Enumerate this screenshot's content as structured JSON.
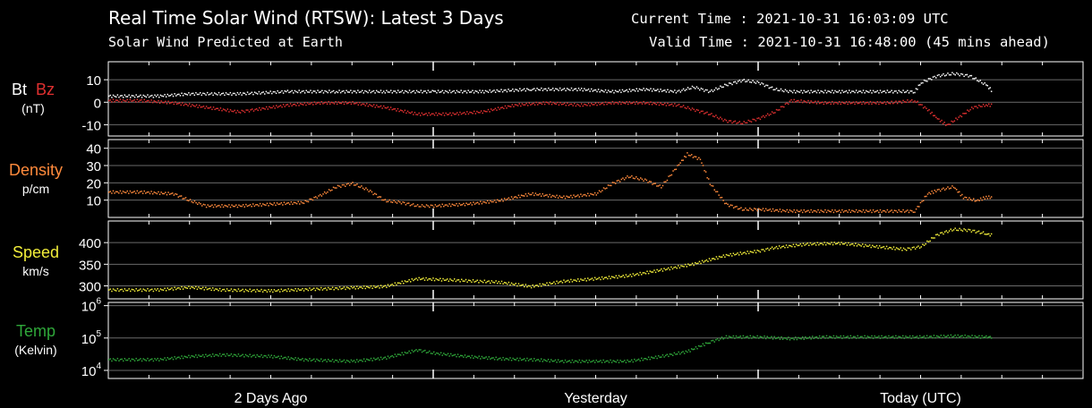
{
  "header": {
    "title": "Real Time Solar Wind (RTSW): Latest 3 Days",
    "subtitle": "Solar Wind Predicted at Earth",
    "current_time_label": "Current Time : ",
    "current_time": "2021-10-31 16:03:09 UTC",
    "valid_time_label": "Valid Time : ",
    "valid_time": "2021-10-31 16:48:00 (45 mins ahead)"
  },
  "colors": {
    "bt": "#ffffff",
    "bz": "#e03030",
    "density": "#ff8a3c",
    "speed": "#f2ee3a",
    "temp": "#2fa83a",
    "axis": "#ffffff",
    "grid": "#6a6a6a"
  },
  "panels": {
    "mag": {
      "label_bt": "Bt",
      "label_bz": "Bz",
      "unit": "(nT)"
    },
    "density": {
      "label": "Density",
      "unit": "p/cm"
    },
    "speed": {
      "label": "Speed",
      "unit": "km/s"
    },
    "temp": {
      "label": "Temp",
      "unit": "(Kelvin)"
    }
  },
  "chart_data": {
    "type": "scatter",
    "x_range_days": [
      0,
      3
    ],
    "x_tick_labels": [
      {
        "day": 0.5,
        "label": "2 Days Ago"
      },
      {
        "day": 1.5,
        "label": "Yesterday"
      },
      {
        "day": 2.5,
        "label": "Today (UTC)"
      }
    ],
    "x_divisions_days": [
      1,
      2
    ],
    "panels": [
      {
        "id": "mag",
        "ylim": [
          -15,
          18
        ],
        "yticks": [
          10,
          0,
          -10
        ],
        "ytick_labels": [
          "10",
          "0",
          "-10"
        ],
        "series": [
          {
            "name": "Bt",
            "color_key": "bt",
            "points": [
              [
                0,
                3
              ],
              [
                0.15,
                3
              ],
              [
                0.25,
                4
              ],
              [
                0.4,
                4
              ],
              [
                0.55,
                5
              ],
              [
                0.7,
                5
              ],
              [
                0.85,
                5
              ],
              [
                1.0,
                5
              ],
              [
                1.15,
                5
              ],
              [
                1.3,
                6
              ],
              [
                1.45,
                6
              ],
              [
                1.55,
                5
              ],
              [
                1.65,
                6
              ],
              [
                1.75,
                5
              ],
              [
                1.8,
                7
              ],
              [
                1.85,
                5
              ],
              [
                1.9,
                8
              ],
              [
                1.95,
                10
              ],
              [
                2.0,
                9
              ],
              [
                2.05,
                6
              ],
              [
                2.1,
                5
              ],
              [
                2.2,
                5
              ],
              [
                2.3,
                5
              ],
              [
                2.4,
                5
              ],
              [
                2.48,
                5
              ],
              [
                2.5,
                9
              ],
              [
                2.55,
                12
              ],
              [
                2.6,
                13
              ],
              [
                2.65,
                12
              ],
              [
                2.7,
                8
              ],
              [
                2.72,
                5
              ]
            ]
          },
          {
            "name": "Bz",
            "color_key": "bz",
            "points": [
              [
                0,
                1
              ],
              [
                0.1,
                1
              ],
              [
                0.2,
                0
              ],
              [
                0.3,
                -2
              ],
              [
                0.4,
                -4
              ],
              [
                0.45,
                -3
              ],
              [
                0.55,
                -1
              ],
              [
                0.65,
                0
              ],
              [
                0.75,
                0
              ],
              [
                0.85,
                -2
              ],
              [
                0.95,
                -5
              ],
              [
                1.05,
                -5
              ],
              [
                1.15,
                -4
              ],
              [
                1.25,
                -1
              ],
              [
                1.35,
                0
              ],
              [
                1.45,
                -1
              ],
              [
                1.55,
                0
              ],
              [
                1.65,
                0
              ],
              [
                1.75,
                -1
              ],
              [
                1.8,
                -3
              ],
              [
                1.85,
                -5
              ],
              [
                1.9,
                -8
              ],
              [
                1.95,
                -9
              ],
              [
                2.0,
                -7
              ],
              [
                2.05,
                -4
              ],
              [
                2.1,
                1
              ],
              [
                2.2,
                0
              ],
              [
                2.3,
                0
              ],
              [
                2.4,
                0
              ],
              [
                2.48,
                1
              ],
              [
                2.52,
                -3
              ],
              [
                2.55,
                -7
              ],
              [
                2.58,
                -10
              ],
              [
                2.62,
                -6
              ],
              [
                2.66,
                -2
              ],
              [
                2.7,
                -1
              ],
              [
                2.72,
                -1
              ]
            ]
          }
        ]
      },
      {
        "id": "density",
        "ylim": [
          0,
          45
        ],
        "yticks": [
          40,
          30,
          20,
          10
        ],
        "ytick_labels": [
          "40",
          "30",
          "20",
          "10"
        ],
        "series": [
          {
            "name": "",
            "color_key": "density",
            "points": [
              [
                0,
                15
              ],
              [
                0.1,
                15
              ],
              [
                0.2,
                14
              ],
              [
                0.25,
                10
              ],
              [
                0.3,
                7
              ],
              [
                0.4,
                7
              ],
              [
                0.5,
                8
              ],
              [
                0.6,
                9
              ],
              [
                0.65,
                13
              ],
              [
                0.7,
                18
              ],
              [
                0.75,
                20
              ],
              [
                0.8,
                16
              ],
              [
                0.85,
                10
              ],
              [
                0.9,
                9
              ],
              [
                0.95,
                7
              ],
              [
                1.0,
                7
              ],
              [
                1.1,
                8
              ],
              [
                1.2,
                10
              ],
              [
                1.3,
                14
              ],
              [
                1.4,
                12
              ],
              [
                1.5,
                14
              ],
              [
                1.55,
                20
              ],
              [
                1.6,
                24
              ],
              [
                1.65,
                22
              ],
              [
                1.7,
                18
              ],
              [
                1.75,
                30
              ],
              [
                1.78,
                37
              ],
              [
                1.82,
                34
              ],
              [
                1.85,
                20
              ],
              [
                1.9,
                8
              ],
              [
                1.95,
                5
              ],
              [
                2.0,
                5
              ],
              [
                2.1,
                4
              ],
              [
                2.2,
                4
              ],
              [
                2.3,
                4
              ],
              [
                2.4,
                4
              ],
              [
                2.48,
                4
              ],
              [
                2.52,
                14
              ],
              [
                2.55,
                16
              ],
              [
                2.6,
                18
              ],
              [
                2.63,
                12
              ],
              [
                2.67,
                10
              ],
              [
                2.7,
                12
              ],
              [
                2.72,
                12
              ]
            ]
          }
        ]
      },
      {
        "id": "speed",
        "ylim": [
          270,
          450
        ],
        "yticks": [
          400,
          350,
          300
        ],
        "ytick_labels": [
          "400",
          "350",
          "300"
        ],
        "series": [
          {
            "name": "",
            "color_key": "speed",
            "points": [
              [
                0,
                292
              ],
              [
                0.15,
                292
              ],
              [
                0.25,
                298
              ],
              [
                0.35,
                292
              ],
              [
                0.5,
                290
              ],
              [
                0.6,
                293
              ],
              [
                0.75,
                297
              ],
              [
                0.85,
                300
              ],
              [
                0.95,
                318
              ],
              [
                1.05,
                315
              ],
              [
                1.2,
                310
              ],
              [
                1.3,
                300
              ],
              [
                1.4,
                312
              ],
              [
                1.5,
                318
              ],
              [
                1.6,
                325
              ],
              [
                1.7,
                338
              ],
              [
                1.8,
                352
              ],
              [
                1.9,
                372
              ],
              [
                2.0,
                382
              ],
              [
                2.05,
                390
              ],
              [
                2.15,
                398
              ],
              [
                2.25,
                400
              ],
              [
                2.35,
                393
              ],
              [
                2.45,
                386
              ],
              [
                2.5,
                392
              ],
              [
                2.55,
                420
              ],
              [
                2.6,
                432
              ],
              [
                2.65,
                430
              ],
              [
                2.7,
                422
              ],
              [
                2.72,
                418
              ]
            ]
          }
        ]
      },
      {
        "id": "temp",
        "log": true,
        "ylim_log10": [
          3.75,
          6.1
        ],
        "yticks_log10": [
          6,
          5,
          4
        ],
        "ytick_labels": [
          "10^6",
          "10^5",
          "10^4"
        ],
        "series": [
          {
            "name": "",
            "color_key": "temp",
            "points": [
              [
                0,
                4.35
              ],
              [
                0.15,
                4.35
              ],
              [
                0.25,
                4.45
              ],
              [
                0.35,
                4.5
              ],
              [
                0.5,
                4.45
              ],
              [
                0.6,
                4.35
              ],
              [
                0.75,
                4.3
              ],
              [
                0.85,
                4.4
              ],
              [
                0.95,
                4.65
              ],
              [
                1.0,
                4.55
              ],
              [
                1.1,
                4.45
              ],
              [
                1.2,
                4.38
              ],
              [
                1.3,
                4.35
              ],
              [
                1.4,
                4.3
              ],
              [
                1.5,
                4.3
              ],
              [
                1.6,
                4.3
              ],
              [
                1.7,
                4.45
              ],
              [
                1.78,
                4.6
              ],
              [
                1.85,
                4.9
              ],
              [
                1.9,
                5.05
              ],
              [
                2.0,
                5.05
              ],
              [
                2.1,
                5.0
              ],
              [
                2.2,
                5.05
              ],
              [
                2.3,
                5.05
              ],
              [
                2.4,
                5.05
              ],
              [
                2.5,
                5.05
              ],
              [
                2.6,
                5.08
              ],
              [
                2.7,
                5.05
              ],
              [
                2.72,
                5.05
              ]
            ]
          }
        ]
      }
    ]
  }
}
